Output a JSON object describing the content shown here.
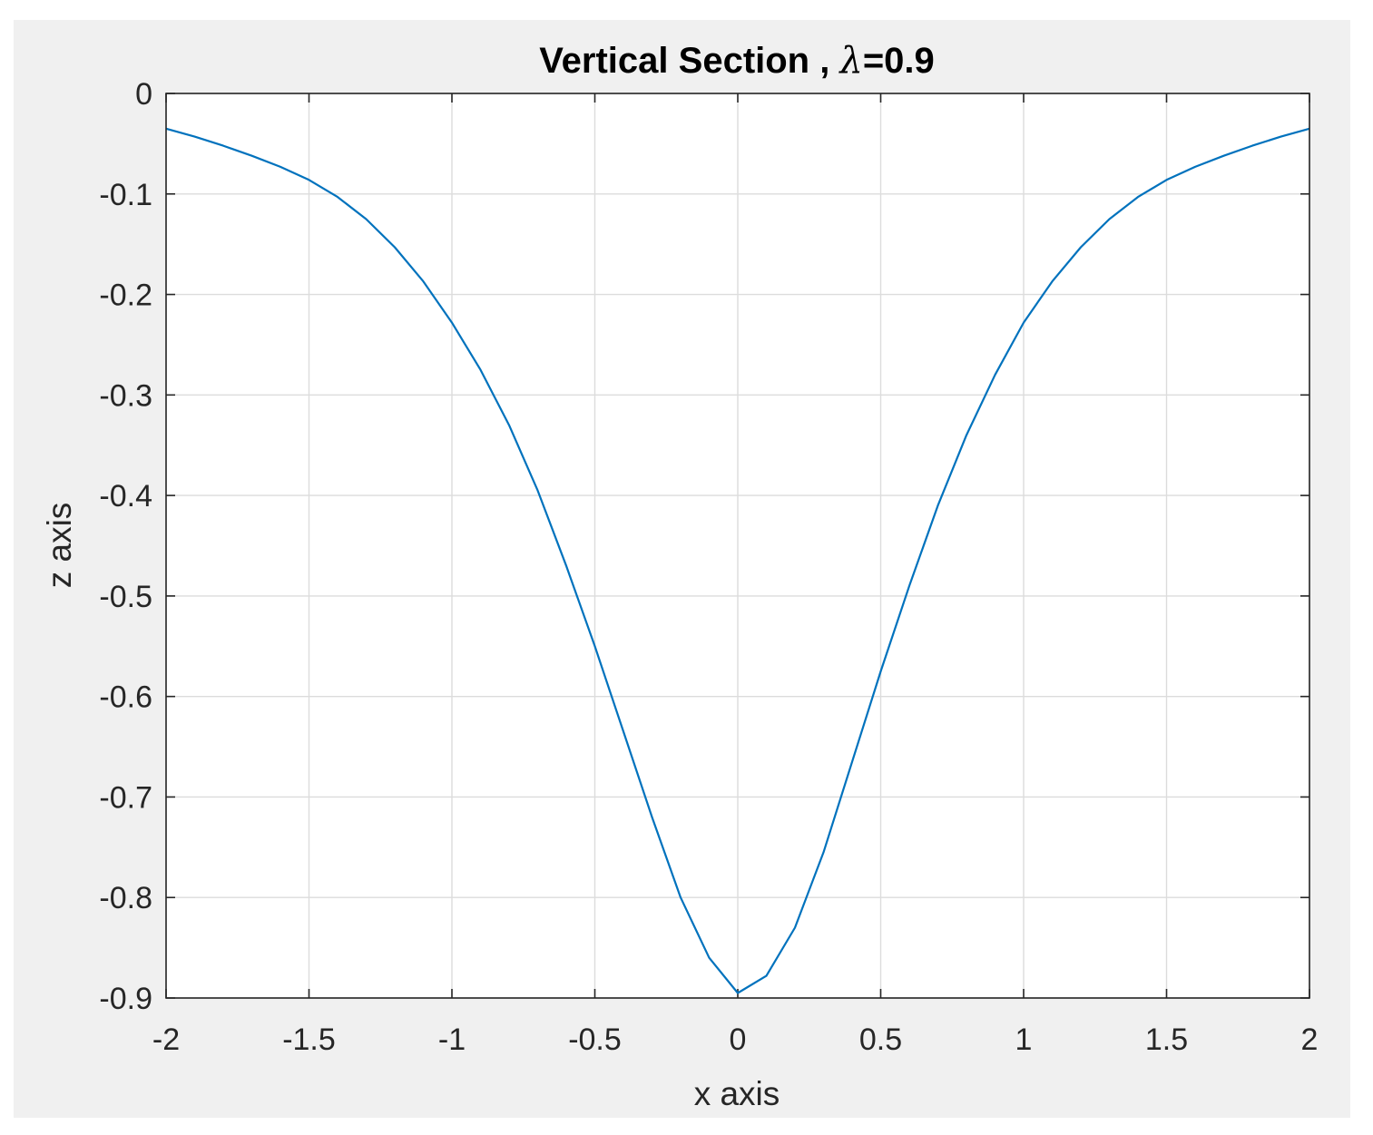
{
  "chart_data": {
    "type": "line",
    "title": "Vertical Section , λ=0.9",
    "title_parts": {
      "prefix": "Vertical Section , ",
      "symbol": "λ",
      "suffix": "=0.9"
    },
    "xlabel": "x axis",
    "ylabel": "z axis",
    "xlim": [
      -2,
      2
    ],
    "ylim": [
      -0.9,
      0
    ],
    "xticks": [
      -2,
      -1.5,
      -1,
      -0.5,
      0,
      0.5,
      1,
      1.5,
      2
    ],
    "xtick_labels": [
      "-2",
      "-1.5",
      "-1",
      "-0.5",
      "0",
      "0.5",
      "1",
      "1.5",
      "2"
    ],
    "yticks": [
      0,
      -0.1,
      -0.2,
      -0.3,
      -0.4,
      -0.5,
      -0.6,
      -0.7,
      -0.8,
      -0.9
    ],
    "ytick_labels": [
      "0",
      "-0.1",
      "-0.2",
      "-0.3",
      "-0.4",
      "-0.5",
      "-0.6",
      "-0.7",
      "-0.8",
      "-0.9"
    ],
    "grid": true,
    "line_color": "#0072bd",
    "series": [
      {
        "x": [
          -2,
          -1.9,
          -1.8,
          -1.7,
          -1.6,
          -1.5,
          -1.4,
          -1.3,
          -1.2,
          -1.1,
          -1,
          -0.9,
          -0.8,
          -0.7,
          -0.6,
          -0.5,
          -0.4,
          -0.3,
          -0.2,
          -0.1,
          0,
          0.1,
          0.2,
          0.3,
          0.4,
          0.5,
          0.6,
          0.7,
          0.8,
          0.9,
          1,
          1.1,
          1.2,
          1.3,
          1.4,
          1.5,
          1.6,
          1.7,
          1.8,
          1.9,
          2
        ],
        "y": [
          -0.035,
          -0.043,
          -0.052,
          -0.062,
          -0.073,
          -0.086,
          -0.103,
          -0.125,
          -0.153,
          -0.187,
          -0.228,
          -0.275,
          -0.33,
          -0.395,
          -0.47,
          -0.55,
          -0.635,
          -0.72,
          -0.8,
          -0.86,
          -0.895,
          -0.878,
          -0.83,
          -0.755,
          -0.665,
          -0.575,
          -0.49,
          -0.41,
          -0.34,
          -0.28,
          -0.228,
          -0.187,
          -0.153,
          -0.125,
          -0.103,
          -0.086,
          -0.073,
          -0.062,
          -0.052,
          -0.043,
          -0.035
        ]
      }
    ]
  }
}
